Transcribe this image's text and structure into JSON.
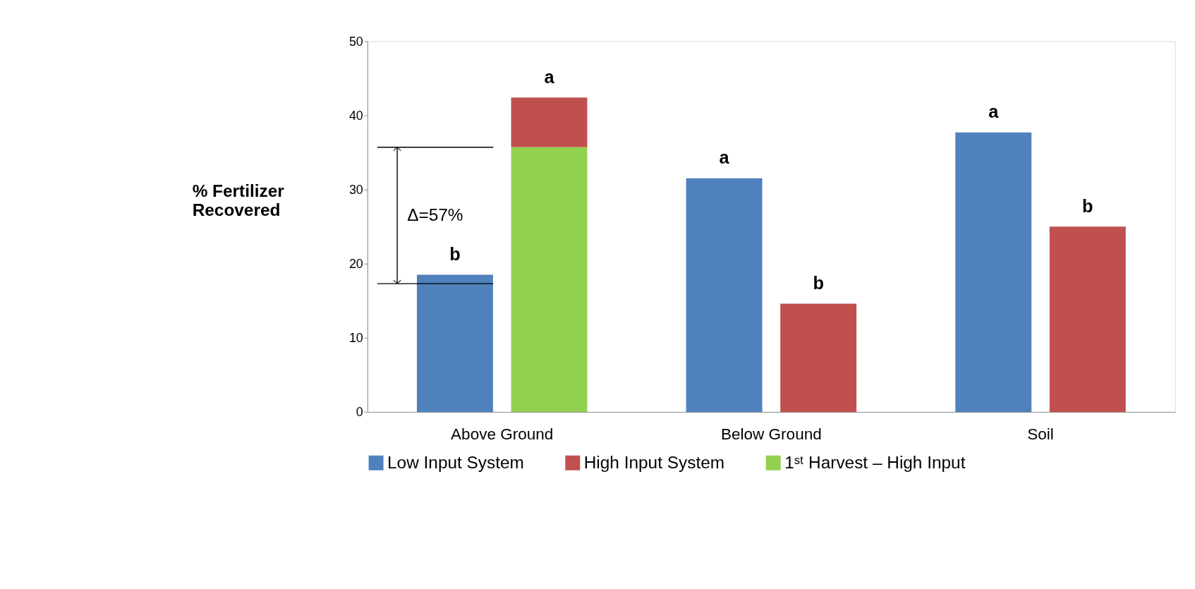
{
  "chart_data": {
    "type": "bar",
    "categories": [
      "Above Ground",
      "Below Ground",
      "Soil"
    ],
    "ylabel": "% Fertilizer Recovered",
    "series": [
      {
        "name": "Low Input System",
        "color": "#4f81bd",
        "values": [
          18.5,
          31.5,
          37.7
        ],
        "value_labels": [
          "b",
          "a",
          "a"
        ]
      },
      {
        "name": "High Input System",
        "color": "#c0504d",
        "base": [
          35.7,
          0,
          0
        ],
        "values": [
          6.7,
          14.6,
          25.0
        ],
        "value_labels": [
          "a",
          "b",
          "b"
        ]
      },
      {
        "name": "1ˢᵗ Harvest – High Input",
        "color": "#92d050",
        "values": [
          35.7,
          null,
          null
        ]
      }
    ],
    "ylim": [
      0,
      50
    ],
    "yticks": [
      0,
      10,
      20,
      30,
      40,
      50
    ],
    "ref_lines": [
      {
        "axis": "y",
        "value": 17.3
      },
      {
        "axis": "y",
        "value": 35.7
      }
    ],
    "annotations": [
      "Δ=57%"
    ],
    "grid": false,
    "legend": "bottom"
  }
}
